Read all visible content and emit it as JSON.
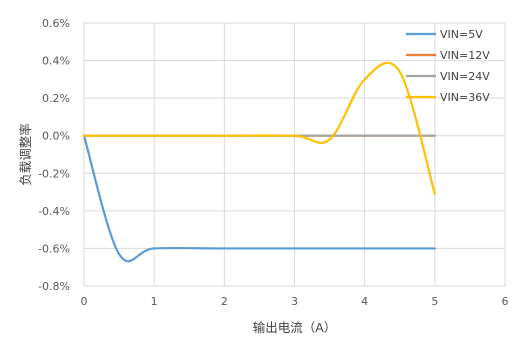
{
  "chart_data": {
    "type": "line",
    "title": "",
    "xlabel": "输出电流（A）",
    "ylabel": "负载调整率",
    "xlim": [
      0,
      6
    ],
    "ylim": [
      -0.8,
      0.6
    ],
    "x_ticks": [
      "0",
      "1",
      "2",
      "3",
      "4",
      "5",
      "6"
    ],
    "y_ticks": [
      "0.6%",
      "0.4%",
      "0.2%",
      "0.0%",
      "-0.2%",
      "-0.4%",
      "-0.6%",
      "-0.8%"
    ],
    "y_tick_values": [
      0.6,
      0.4,
      0.2,
      0.0,
      -0.2,
      -0.4,
      -0.6,
      -0.8
    ],
    "grid": true,
    "legend_position": "top-right",
    "series": [
      {
        "name": "VIN=5V",
        "color": "#5b9bd5",
        "x": [
          0,
          0.5,
          1,
          2,
          3,
          4,
          5
        ],
        "y": [
          0.0,
          -0.63,
          -0.6,
          -0.6,
          -0.6,
          -0.6,
          -0.6
        ]
      },
      {
        "name": "VIN=12V",
        "color": "#ed7d31",
        "x": [
          0,
          1,
          2,
          3,
          4,
          5
        ],
        "y": [
          0.0,
          0.0,
          0.0,
          0.0,
          0.0,
          0.0
        ]
      },
      {
        "name": "VIN=24V",
        "color": "#a5a5a5",
        "x": [
          0,
          1,
          2,
          3,
          4,
          5
        ],
        "y": [
          0.0,
          0.0,
          0.0,
          0.0,
          0.0,
          0.0
        ]
      },
      {
        "name": "VIN=36V",
        "color": "#ffc000",
        "x": [
          0,
          1,
          2,
          3,
          3.5,
          4,
          4.5,
          5
        ],
        "y": [
          0.0,
          0.0,
          0.0,
          0.0,
          -0.02,
          0.3,
          0.34,
          -0.31
        ]
      }
    ]
  }
}
